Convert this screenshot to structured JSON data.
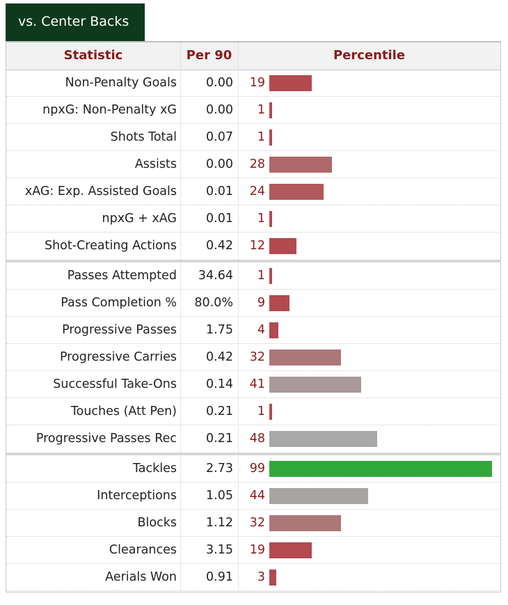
{
  "tab": {
    "label": "vs. Center Backs"
  },
  "table": {
    "headers": {
      "statistic": "Statistic",
      "per90": "Per 90",
      "percentile": "Percentile"
    }
  },
  "colors": {
    "header_text": "#8b1a1a",
    "tab_bg": "#0d3a1c",
    "bar_elite": "#33a83a",
    "bar_low": "#b24a4f",
    "bar_mid": "#a8a8a8"
  },
  "chart_data": {
    "type": "bar",
    "orientation": "horizontal",
    "xlim": [
      0,
      100
    ],
    "groups": [
      {
        "rows": [
          {
            "stat": "Non-Penalty Goals",
            "per90": "0.00",
            "percentile": 19
          },
          {
            "stat": "npxG: Non-Penalty xG",
            "per90": "0.00",
            "percentile": 1
          },
          {
            "stat": "Shots Total",
            "per90": "0.07",
            "percentile": 1
          },
          {
            "stat": "Assists",
            "per90": "0.00",
            "percentile": 28
          },
          {
            "stat": "xAG: Exp. Assisted Goals",
            "per90": "0.01",
            "percentile": 24
          },
          {
            "stat": "npxG + xAG",
            "per90": "0.01",
            "percentile": 1
          },
          {
            "stat": "Shot-Creating Actions",
            "per90": "0.42",
            "percentile": 12
          }
        ]
      },
      {
        "rows": [
          {
            "stat": "Passes Attempted",
            "per90": "34.64",
            "percentile": 1
          },
          {
            "stat": "Pass Completion %",
            "per90": "80.0%",
            "percentile": 9
          },
          {
            "stat": "Progressive Passes",
            "per90": "1.75",
            "percentile": 4
          },
          {
            "stat": "Progressive Carries",
            "per90": "0.42",
            "percentile": 32
          },
          {
            "stat": "Successful Take-Ons",
            "per90": "0.14",
            "percentile": 41
          },
          {
            "stat": "Touches (Att Pen)",
            "per90": "0.21",
            "percentile": 1
          },
          {
            "stat": "Progressive Passes Rec",
            "per90": "0.21",
            "percentile": 48
          }
        ]
      },
      {
        "rows": [
          {
            "stat": "Tackles",
            "per90": "2.73",
            "percentile": 99
          },
          {
            "stat": "Interceptions",
            "per90": "1.05",
            "percentile": 44
          },
          {
            "stat": "Blocks",
            "per90": "1.12",
            "percentile": 32
          },
          {
            "stat": "Clearances",
            "per90": "3.15",
            "percentile": 19
          },
          {
            "stat": "Aerials Won",
            "per90": "0.91",
            "percentile": 3
          }
        ]
      }
    ]
  }
}
